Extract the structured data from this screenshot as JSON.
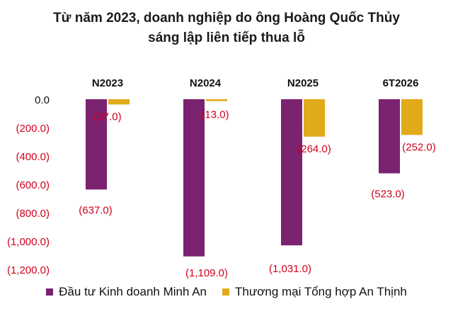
{
  "title_line1": "Từ năm 2023, doanh nghiệp do ông Hoàng Quốc Thủy",
  "title_line2": "sáng lập liên tiếp thua lỗ",
  "chart_data": {
    "type": "bar",
    "categories": [
      "N2023",
      "N2024",
      "N2025",
      "6T2026"
    ],
    "series": [
      {
        "name": "Đầu tư Kinh doanh Minh An",
        "color": "#7b2270",
        "values": [
          -637.0,
          -1109.0,
          -1031.0,
          -523.0
        ],
        "labels": [
          "(637.0)",
          "(1,109.0)",
          "(1,031.0)",
          "(523.0)"
        ]
      },
      {
        "name": "Thương mại Tổng hợp An Thịnh",
        "color": "#e0aa1a",
        "values": [
          -37.0,
          -13.0,
          -264.0,
          -252.0
        ],
        "labels": [
          "(37.0)",
          "(13.0)",
          "(264.0)",
          "(252.0)"
        ]
      }
    ],
    "ylim": [
      -1200,
      0
    ],
    "yticks": [
      0,
      -200,
      -400,
      -600,
      -800,
      -1000,
      -1200
    ],
    "ytick_labels": [
      "0.0",
      "(200.0)",
      "(400.0)",
      "(600.0)",
      "(800.0)",
      "(1,000.0)",
      "(1,200.0)"
    ],
    "colors": {
      "tick_label": "#d0021b",
      "data_label": "#d0021b",
      "axis_text": "#111111"
    },
    "grid": false,
    "legend_position": "bottom"
  }
}
